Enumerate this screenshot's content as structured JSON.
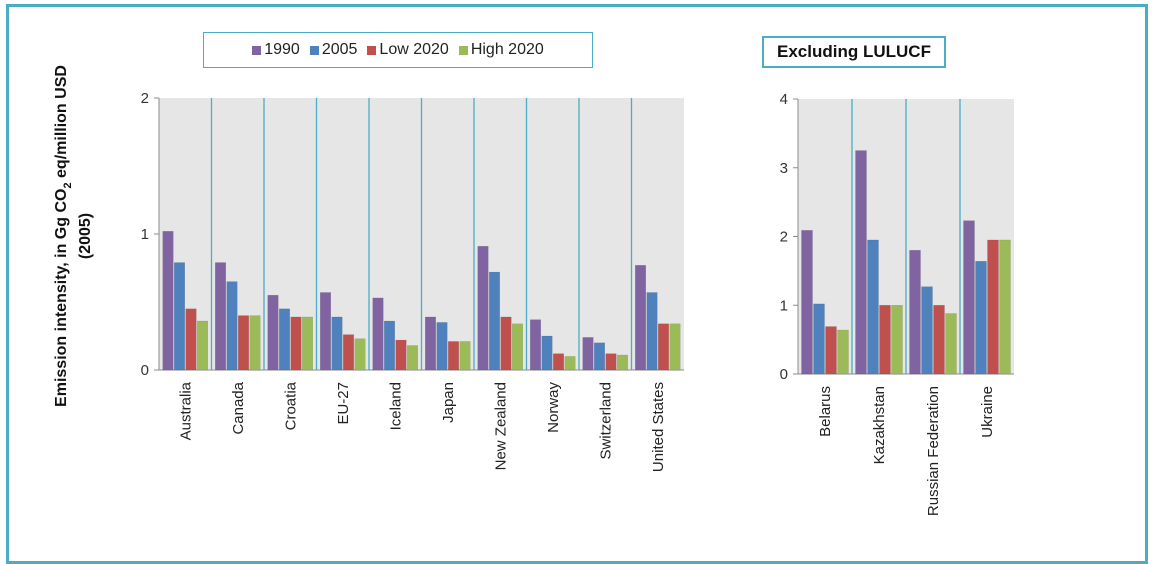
{
  "ylabel_line1": "Emission intensity, in Gg CO",
  "ylabel_sub": "2",
  "ylabel_line1_tail": " eq/million USD",
  "ylabel_line2": "(2005)",
  "legend": [
    {
      "name": "1990",
      "color": "#8064a2"
    },
    {
      "name": "2005",
      "color": "#4f81bd"
    },
    {
      "name": "Low 2020",
      "color": "#c0504d"
    },
    {
      "name": "High 2020",
      "color": "#9bbb59"
    }
  ],
  "excluding_label": "Excluding LULUCF",
  "chart_data": [
    {
      "type": "bar",
      "ylim": [
        0,
        2
      ],
      "yticks": [
        "0",
        "1",
        "2"
      ],
      "categories": [
        "Australia",
        "Canada",
        "Croatia",
        "EU-27",
        "Iceland",
        "Japan",
        "New Zealand",
        "Norway",
        "Switzerland",
        "United States"
      ],
      "series": [
        {
          "name": "1990",
          "values": [
            1.02,
            0.79,
            0.55,
            0.57,
            0.53,
            0.39,
            0.91,
            0.37,
            0.24,
            0.77
          ]
        },
        {
          "name": "2005",
          "values": [
            0.79,
            0.65,
            0.45,
            0.39,
            0.36,
            0.35,
            0.72,
            0.25,
            0.2,
            0.57
          ]
        },
        {
          "name": "Low 2020",
          "values": [
            0.45,
            0.4,
            0.39,
            0.26,
            0.22,
            0.21,
            0.39,
            0.12,
            0.12,
            0.34
          ]
        },
        {
          "name": "High 2020",
          "values": [
            0.36,
            0.4,
            0.39,
            0.23,
            0.18,
            0.21,
            0.34,
            0.1,
            0.11,
            0.34
          ]
        }
      ]
    },
    {
      "type": "bar",
      "ylim": [
        0,
        4
      ],
      "yticks": [
        "0",
        "1",
        "2",
        "3",
        "4"
      ],
      "categories": [
        "Belarus",
        "Kazakhstan",
        "Russian Federation",
        "Ukraine"
      ],
      "series": [
        {
          "name": "1990",
          "values": [
            2.09,
            3.25,
            1.8,
            2.23
          ]
        },
        {
          "name": "2005",
          "values": [
            1.02,
            1.95,
            1.27,
            1.64
          ]
        },
        {
          "name": "Low 2020",
          "values": [
            0.69,
            1.0,
            1.0,
            1.95
          ]
        },
        {
          "name": "High 2020",
          "values": [
            0.64,
            1.0,
            0.88,
            1.95
          ]
        }
      ]
    }
  ]
}
